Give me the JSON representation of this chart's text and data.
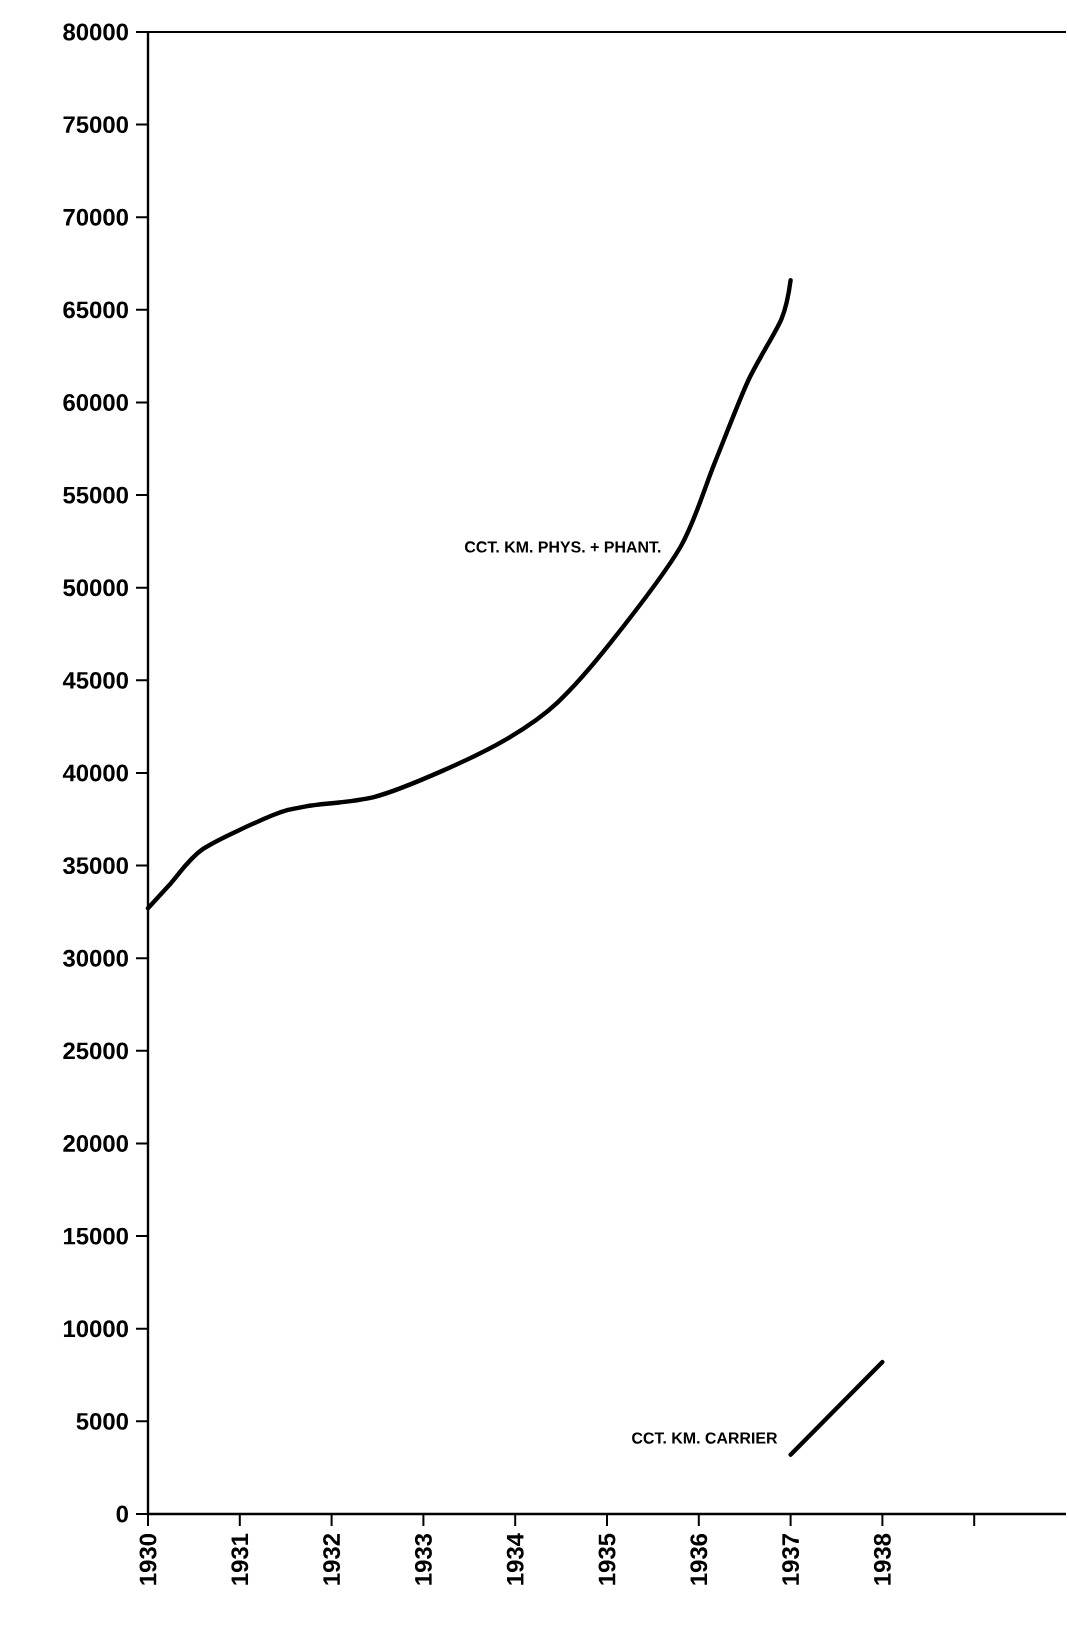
{
  "chart_data": {
    "type": "line",
    "xlim": [
      1930,
      1940
    ],
    "ylim": [
      0,
      80000
    ],
    "xticks": [
      1930,
      1931,
      1932,
      1933,
      1934,
      1935,
      1936,
      1937,
      1938,
      {
        "value": 1939,
        "label": null
      }
    ],
    "yticks": [
      0,
      5000,
      10000,
      15000,
      20000,
      25000,
      30000,
      35000,
      40000,
      45000,
      50000,
      55000,
      60000,
      65000,
      70000,
      75000,
      80000
    ],
    "series": [
      {
        "name": "CCT. KM. PHYS. + PHANT.",
        "color": "#000000",
        "x": [
          1930,
          1930.24,
          1930.6,
          1931.35,
          1931.72,
          1932.46,
          1933.2,
          1933.93,
          1934.46,
          1935.05,
          1935.8,
          1936.17,
          1936.54,
          1936.9,
          1937
        ],
        "values": [
          32700,
          34000,
          35900,
          37700,
          38200,
          38700,
          40100,
          41900,
          43800,
          47100,
          52200,
          56700,
          61200,
          64500,
          66600
        ]
      },
      {
        "name": "CCT. KM. CARRIER",
        "color": "#000000",
        "x": [
          1937,
          1938
        ],
        "values": [
          3200,
          8200
        ]
      }
    ]
  }
}
